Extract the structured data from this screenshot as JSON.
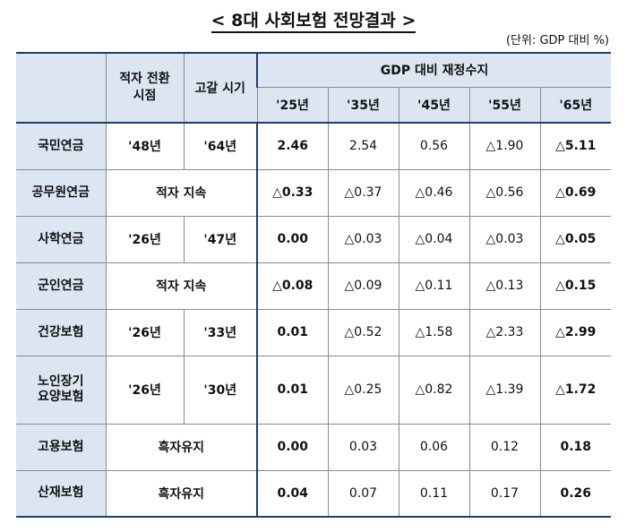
{
  "title": "< 8대 사회보험 전망결과 >",
  "unit": "(단위: GDP 대비 %)",
  "header": {
    "transition": "적자 전환\n시점",
    "depletion": "고갈 시기",
    "fiscal": "GDP 대비 재정수지",
    "years": [
      "'25년",
      "'35년",
      "'45년",
      "'55년",
      "'65년"
    ]
  },
  "rows": [
    {
      "name": "국민연금",
      "transition": "'48년",
      "depletion": "'64년",
      "values": [
        "2.46",
        "2.54",
        "0.56",
        "△1.90",
        "△5.11"
      ]
    },
    {
      "name": "공무원연금",
      "merged": "적자 지속",
      "values": [
        "△0.33",
        "△0.37",
        "△0.46",
        "△0.56",
        "△0.69"
      ]
    },
    {
      "name": "사학연금",
      "transition": "'26년",
      "depletion": "'47년",
      "values": [
        "0.00",
        "△0.03",
        "△0.04",
        "△0.03",
        "△0.05"
      ]
    },
    {
      "name": "군인연금",
      "merged": "적자 지속",
      "values": [
        "△0.08",
        "△0.09",
        "△0.11",
        "△0.13",
        "△0.15"
      ]
    },
    {
      "name": "건강보험",
      "transition": "'26년",
      "depletion": "'33년",
      "values": [
        "0.01",
        "△0.52",
        "△1.58",
        "△2.33",
        "△2.99"
      ]
    },
    {
      "name": "노인장기\n요양보험",
      "transition": "'26년",
      "depletion": "'30년",
      "values": [
        "0.01",
        "△0.25",
        "△0.82",
        "△1.39",
        "△1.72"
      ]
    },
    {
      "name": "고용보험",
      "merged": "흑자유지",
      "values": [
        "0.00",
        "0.03",
        "0.06",
        "0.12",
        "0.18"
      ]
    },
    {
      "name": "산재보험",
      "merged": "흑자유지",
      "values": [
        "0.04",
        "0.07",
        "0.11",
        "0.17",
        "0.26"
      ]
    }
  ]
}
